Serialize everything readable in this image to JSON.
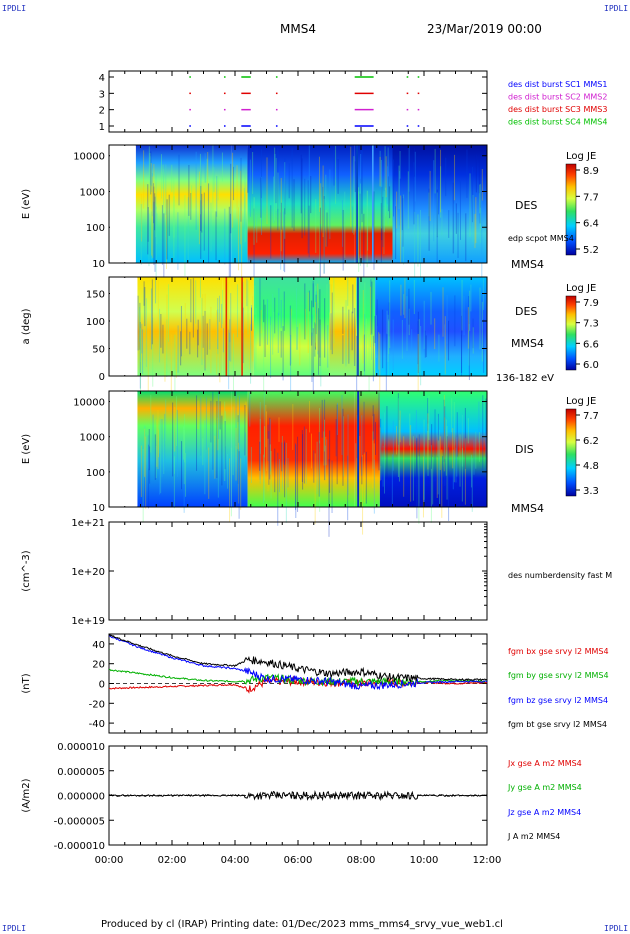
{
  "header": {
    "corner_tl": "IPDLI",
    "corner_tr": "IPDLI",
    "corner_bl": "IPDLI",
    "corner_br": "IPDLI",
    "spacecraft": "MMS4",
    "datetime": "23/Mar/2019 00:00"
  },
  "footer": {
    "text": "Produced by cl (IRAP)   Printing date: 01/Dec/2023   mms_mms4_srvy_vue_web1.cl"
  },
  "chart_data": [
    {
      "type": "scatter",
      "yticks": [
        "1",
        "2",
        "3",
        "4"
      ],
      "legend": [
        {
          "label": "des dist burst SC1 MMS1",
          "color": "#0000ff"
        },
        {
          "label": "des dist burst SC2 MMS2",
          "color": "#d020d0"
        },
        {
          "label": "des dist burst SC3 MMS3",
          "color": "#e00000"
        },
        {
          "label": "des dist burst SC4 MMS4",
          "color": "#00c000"
        }
      ],
      "burst_intervals_hours": [
        [
          2.55,
          2.6
        ],
        [
          3.65,
          3.7
        ],
        [
          4.2,
          4.5
        ],
        [
          5.3,
          5.35
        ],
        [
          7.8,
          8.4
        ],
        [
          9.45,
          9.5
        ],
        [
          9.8,
          9.85
        ]
      ]
    },
    {
      "type": "heatmap",
      "ylabel": "E (eV)",
      "yticks": [
        "10",
        "100",
        "1000",
        "10000"
      ],
      "right_labels": [
        "DES",
        "edp scpot MMS4",
        "MMS4"
      ],
      "colorbar": {
        "title": "Log JE",
        "ticks": [
          "8.9",
          "7.7",
          "6.4",
          "5.2"
        ]
      }
    },
    {
      "type": "heatmap",
      "ylabel": "a (deg)",
      "yticks": [
        "0",
        "50",
        "100",
        "150"
      ],
      "right_labels": [
        "DES",
        "MMS4",
        "136-182 eV"
      ],
      "colorbar": {
        "title": "Log JE",
        "ticks": [
          "7.9",
          "7.3",
          "6.6",
          "6.0"
        ]
      }
    },
    {
      "type": "heatmap",
      "ylabel": "E (eV)",
      "yticks": [
        "10",
        "100",
        "1000",
        "10000"
      ],
      "right_labels": [
        "DIS",
        "MMS4"
      ],
      "colorbar": {
        "title": "Log JE",
        "ticks": [
          "7.7",
          "6.2",
          "4.8",
          "3.3"
        ]
      }
    },
    {
      "type": "line",
      "ylabel": "(cm^-3)",
      "yticks": [
        "1e+19",
        "1e+20",
        "1e+21"
      ],
      "legend": [
        {
          "label": "des numberdensity fast M",
          "color": "#000000"
        }
      ],
      "series": []
    },
    {
      "type": "line",
      "ylabel": "(nT)",
      "yticks": [
        "-40",
        "-20",
        "0",
        "20",
        "40"
      ],
      "ylim": [
        -50,
        50
      ],
      "legend": [
        {
          "label": "fgm bx gse srvy l2 MMS4",
          "color": "#e00000"
        },
        {
          "label": "fgm by gse srvy l2 MMS4",
          "color": "#00b000"
        },
        {
          "label": "fgm bz gse srvy l2 MMS4",
          "color": "#0000ff"
        },
        {
          "label": "fgm bt gse srvy l2 MMS4",
          "color": "#000000"
        }
      ],
      "series": [
        {
          "color": "#e00000",
          "x": [
            0,
            1,
            2,
            3,
            4,
            4.4,
            5,
            6,
            7,
            8,
            9,
            10,
            11,
            12
          ],
          "y": [
            -5,
            -4,
            -3,
            -2,
            -1,
            -6,
            2,
            2,
            1,
            0,
            1,
            1,
            0,
            1
          ]
        },
        {
          "color": "#00b000",
          "x": [
            0,
            1,
            2,
            3,
            4,
            4.4,
            5,
            6,
            7,
            8,
            9,
            10,
            11,
            12
          ],
          "y": [
            14,
            10,
            6,
            3,
            2,
            3,
            6,
            3,
            2,
            2,
            2,
            2,
            3,
            2
          ]
        },
        {
          "color": "#0000ff",
          "x": [
            0,
            1,
            2,
            3,
            4,
            4.4,
            5,
            6,
            7,
            8,
            9,
            10,
            11,
            12
          ],
          "y": [
            48,
            36,
            26,
            18,
            15,
            12,
            5,
            4,
            2,
            -3,
            -1,
            1,
            2,
            2
          ]
        },
        {
          "color": "#000000",
          "x": [
            0,
            1,
            2,
            3,
            4,
            4.4,
            5,
            6,
            7,
            8,
            9,
            10,
            11,
            12
          ],
          "y": [
            49,
            38,
            28,
            20,
            18,
            24,
            22,
            15,
            10,
            12,
            6,
            5,
            4,
            4
          ]
        }
      ]
    },
    {
      "type": "line",
      "ylabel": "(A/m2)",
      "yticks": [
        "-0.000010",
        "-0.000005",
        "0.000000",
        "0.000005",
        "0.000010"
      ],
      "ylim": [
        -1e-05,
        1e-05
      ],
      "legend": [
        {
          "label": "Jx gse A m2 MMS4",
          "color": "#e00000"
        },
        {
          "label": "Jy gse A m2 MMS4",
          "color": "#00b000"
        },
        {
          "label": "Jz gse A m2 MMS4",
          "color": "#0000ff"
        },
        {
          "label": "J A m2 MMS4",
          "color": "#000000"
        }
      ],
      "series": [
        {
          "color": "#000000",
          "x": [
            0,
            12
          ],
          "y": [
            0,
            0
          ]
        }
      ]
    }
  ],
  "xaxis": {
    "ticks": [
      "00:00",
      "02:00",
      "04:00",
      "06:00",
      "08:00",
      "10:00",
      "12:00"
    ],
    "range_hours": [
      0,
      12
    ]
  }
}
